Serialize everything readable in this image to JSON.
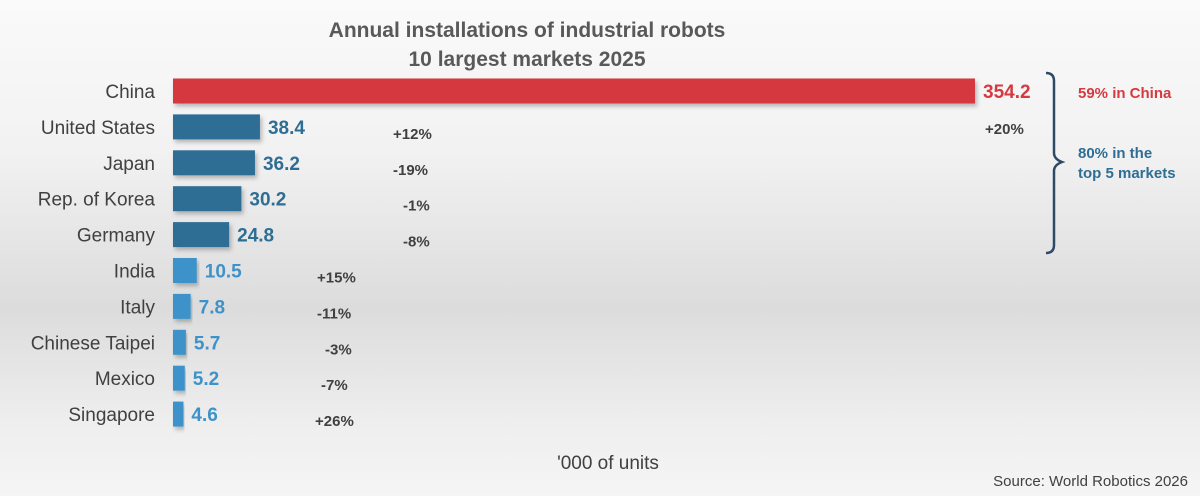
{
  "chart_data": {
    "type": "bar",
    "orientation": "horizontal",
    "title": [
      "Annual installations of industrial robots",
      "10 largest markets 2025"
    ],
    "categories": [
      "China",
      "United States",
      "Japan",
      "Rep. of Korea",
      "Germany",
      "India",
      "Italy",
      "Chinese Taipei",
      "Mexico",
      "Singapore"
    ],
    "values": [
      354.2,
      38.4,
      36.2,
      30.2,
      24.8,
      10.5,
      7.8,
      5.7,
      5.2,
      4.6
    ],
    "value_labels": [
      "354.2",
      "38.4",
      "36.2",
      "30.2",
      "24.8",
      "10.5",
      "7.8",
      "5.7",
      "5.2",
      "4.6"
    ],
    "changes": [
      "",
      "+12%",
      "-19%",
      "-1%",
      "-8%",
      "+15%",
      "-11%",
      "-3%",
      "-7%",
      "+26%"
    ],
    "xlim": [
      0,
      354.2
    ],
    "xlabel": "'000 of units",
    "grid": false,
    "colors": {
      "china": "#d6393f",
      "top5": "#2e6e94",
      "others": "#3d93c9",
      "change_text": "#404040"
    },
    "annotations": {
      "china_share": "59% in China",
      "top5_change": "+20%",
      "top5_share_line1": "80% in the",
      "top5_share_line2": "top 5 markets"
    },
    "source": "Source: World Robotics 2026"
  }
}
